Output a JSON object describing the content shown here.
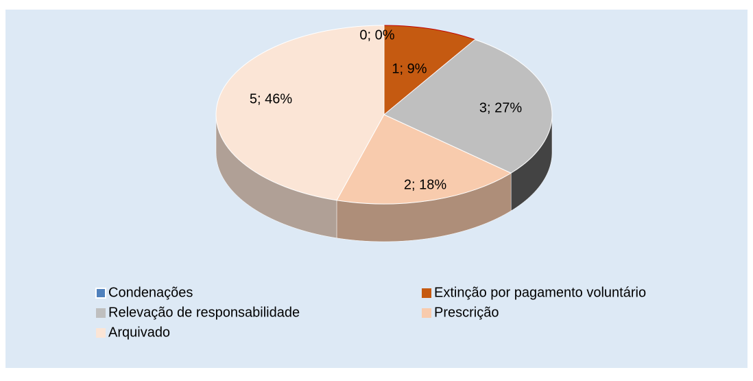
{
  "chart_data": {
    "type": "pie",
    "categories": [
      "Condenações",
      "Extinção por pagamento voluntário",
      "Relevação de responsabilidade",
      "Prescrição",
      "Arquivado"
    ],
    "values": [
      0,
      1,
      3,
      2,
      5
    ],
    "value_labels": [
      "0; 0%",
      "1; 9%",
      "3; 27%",
      "2; 18%",
      "5; 46%"
    ],
    "colors": [
      "#4f81bd",
      "#c55a11",
      "#bfbfbf",
      "#f8cbad",
      "#fbe5d6"
    ],
    "legend": "bottom"
  }
}
